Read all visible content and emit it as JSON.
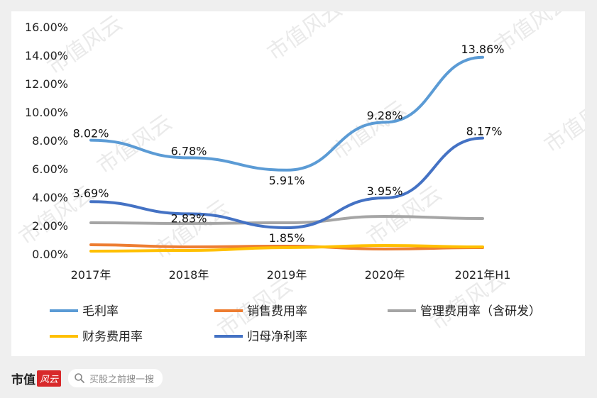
{
  "chart_data": {
    "type": "line",
    "categories": [
      "2017年",
      "2018年",
      "2019年",
      "2020年",
      "2021年H1"
    ],
    "yticks": [
      "0.00%",
      "2.00%",
      "4.00%",
      "6.00%",
      "8.00%",
      "10.00%",
      "12.00%",
      "14.00%",
      "16.00%"
    ],
    "ylim": [
      0,
      16
    ],
    "grid": false,
    "legend_position": "bottom",
    "series": [
      {
        "name": "毛利率",
        "color": "#5b9bd5",
        "values": [
          8.02,
          6.78,
          5.91,
          9.28,
          13.86
        ],
        "labels": [
          "8.02%",
          "6.78%",
          "5.91%",
          "9.28%",
          "13.86%"
        ]
      },
      {
        "name": "销售费用率",
        "color": "#ed7d31",
        "values": [
          0.65,
          0.5,
          0.55,
          0.35,
          0.45
        ],
        "labels": []
      },
      {
        "name": "管理费用率（含研发）",
        "color": "#a5a5a5",
        "values": [
          2.2,
          2.15,
          2.2,
          2.65,
          2.5
        ],
        "labels": []
      },
      {
        "name": "财务费用率",
        "color": "#ffc000",
        "values": [
          0.2,
          0.25,
          0.45,
          0.6,
          0.5
        ],
        "labels": []
      },
      {
        "name": "归母净利率",
        "color": "#4472c4",
        "values": [
          3.69,
          2.83,
          1.85,
          3.95,
          8.17
        ],
        "labels": [
          "3.69%",
          "2.83%",
          "1.85%",
          "3.95%",
          "8.17%"
        ]
      }
    ]
  },
  "footer": {
    "brand": "市值",
    "badge": "风云",
    "search_placeholder": "买股之前搜一搜"
  },
  "watermark": "市值风云"
}
